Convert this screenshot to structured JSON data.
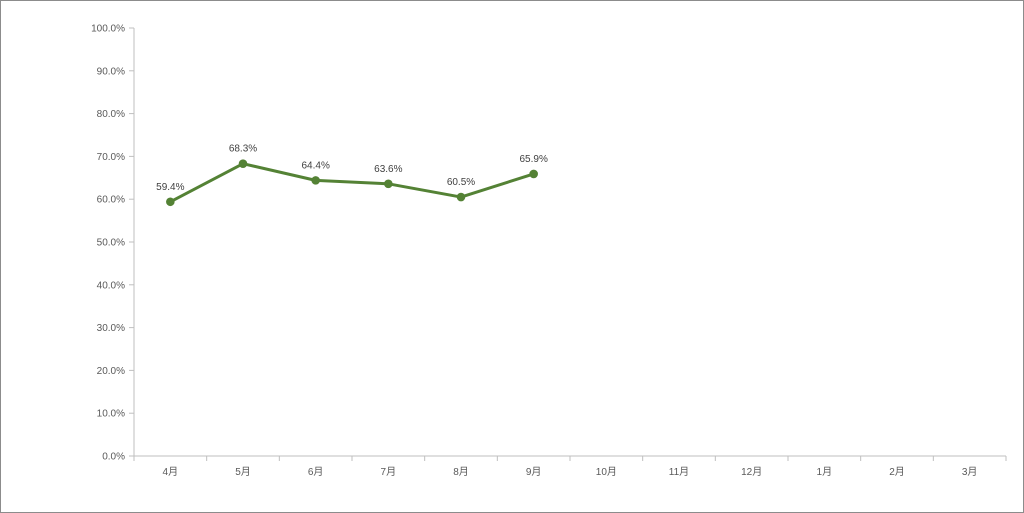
{
  "chart_data": {
    "type": "line",
    "categories": [
      "4月",
      "5月",
      "6月",
      "7月",
      "8月",
      "9月",
      "10月",
      "11月",
      "12月",
      "1月",
      "2月",
      "3月"
    ],
    "series": [
      {
        "values": [
          59.4,
          68.3,
          64.4,
          63.6,
          60.5,
          65.9,
          null,
          null,
          null,
          null,
          null,
          null
        ]
      }
    ],
    "data_labels": [
      "59.4%",
      "68.3%",
      "64.4%",
      "63.6%",
      "60.5%",
      "65.9%"
    ],
    "y_ticks": [
      "0.0%",
      "10.0%",
      "20.0%",
      "30.0%",
      "40.0%",
      "50.0%",
      "60.0%",
      "70.0%",
      "80.0%",
      "90.0%",
      "100.0%"
    ],
    "ylim": [
      0,
      100
    ],
    "title": "",
    "xlabel": "",
    "ylabel": "",
    "grid": false,
    "legend": "none",
    "colors": {
      "line": "#548235",
      "axis": "#bfbfbf",
      "text": "#595959"
    }
  }
}
